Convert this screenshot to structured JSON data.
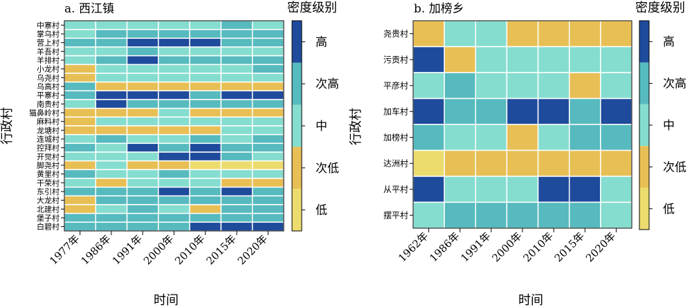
{
  "palette": {
    "低": "#ECDC6E",
    "次低": "#E8BF55",
    "中": "#85DDCF",
    "次高": "#56BABE",
    "高": "#1F4B9C"
  },
  "chart_data": [
    {
      "type": "heatmap",
      "title": "a. 西江镇",
      "xlabel": "时间",
      "ylabel": "行政村",
      "legend_title": "密度级别",
      "legend_levels": [
        "高",
        "次高",
        "中",
        "次低",
        "低"
      ],
      "categories": [
        "1977年",
        "1986年",
        "1991年",
        "2000年",
        "2010年",
        "2015年",
        "2020年"
      ],
      "rows": [
        "中寨村",
        "掌乌村",
        "营上村",
        "羊吾村",
        "羊排村",
        "小龙村",
        "乌尧村",
        "乌高村",
        "平寨村",
        "南贵村",
        "猫鼻岭村",
        "麻料村",
        "龙塘村",
        "连城村",
        "控拜村",
        "开觉村",
        "脚尧村",
        "黄里村",
        "干荣村",
        "东引村",
        "大龙村",
        "北建村",
        "堡子村",
        "白碧村"
      ],
      "values": [
        [
          "中",
          "中",
          "中",
          "中",
          "中",
          "次高",
          "中"
        ],
        [
          "中",
          "次高",
          "次高",
          "次高",
          "次高",
          "次高",
          "次高"
        ],
        [
          "次高",
          "次高",
          "高",
          "高",
          "高",
          "次高",
          "次高"
        ],
        [
          "中",
          "中",
          "次高",
          "中",
          "中",
          "中",
          "中"
        ],
        [
          "中",
          "次高",
          "高",
          "次高",
          "次高",
          "次高",
          "次高"
        ],
        [
          "次低",
          "中",
          "中",
          "中",
          "中",
          "中",
          "次高"
        ],
        [
          "次低",
          "中",
          "中",
          "中",
          "中",
          "中",
          "中"
        ],
        [
          "次高",
          "次低",
          "次低",
          "次低",
          "次低",
          "次低",
          "次低"
        ],
        [
          "次高",
          "高",
          "高",
          "高",
          "次高",
          "高",
          "高"
        ],
        [
          "中",
          "高",
          "次高",
          "次高",
          "次高",
          "次高",
          "次高"
        ],
        [
          "次低",
          "次低",
          "次低",
          "中",
          "次低",
          "次低",
          "次低"
        ],
        [
          "次低",
          "中",
          "中",
          "中",
          "中",
          "中",
          "中"
        ],
        [
          "次低",
          "次低",
          "次低",
          "次低",
          "次低",
          "中",
          "中"
        ],
        [
          "中",
          "次高",
          "中",
          "中",
          "次高",
          "中",
          "次高"
        ],
        [
          "次高",
          "中",
          "高",
          "次高",
          "高",
          "次高",
          "次高"
        ],
        [
          "中",
          "中",
          "中",
          "高",
          "高",
          "次高",
          "中"
        ],
        [
          "次低",
          "中",
          "次低",
          "次低",
          "低",
          "低",
          "低"
        ],
        [
          "次高",
          "中",
          "中",
          "次高",
          "中",
          "中",
          "中"
        ],
        [
          "中",
          "次低",
          "中",
          "中",
          "中",
          "次低",
          "次低"
        ],
        [
          "次高",
          "次高",
          "次高",
          "高",
          "次高",
          "高",
          "次高"
        ],
        [
          "次低",
          "次高",
          "次高",
          "次高",
          "次高",
          "次高",
          "次高"
        ],
        [
          "次低",
          "中",
          "次高",
          "中",
          "次低",
          "次高",
          "次高"
        ],
        [
          "次高",
          "次高",
          "次高",
          "次高",
          "次高",
          "次高",
          "次高"
        ],
        [
          "次高",
          "次高",
          "次高",
          "次高",
          "高",
          "高",
          "高"
        ]
      ]
    },
    {
      "type": "heatmap",
      "title": "b. 加榜乡",
      "xlabel": "时间",
      "ylabel": "行政村",
      "legend_title": "密度级别",
      "legend_levels": [
        "高",
        "次高",
        "中",
        "次低",
        "低"
      ],
      "categories": [
        "1962年",
        "1986年",
        "1991年",
        "2000年",
        "2010年",
        "2015年",
        "2020年"
      ],
      "rows": [
        "尧贵村",
        "污贡村",
        "平彦村",
        "加车村",
        "加榜村",
        "达洲村",
        "从平村",
        "摆平村"
      ],
      "values": [
        [
          "次低",
          "中",
          "中",
          "次低",
          "次低",
          "次低",
          "次低"
        ],
        [
          "高",
          "次低",
          "中",
          "中",
          "中",
          "中",
          "中"
        ],
        [
          "中",
          "次高",
          "中",
          "中",
          "中",
          "次低",
          "中"
        ],
        [
          "高",
          "次高",
          "次高",
          "高",
          "高",
          "次高",
          "高"
        ],
        [
          "次高",
          "中",
          "中",
          "次低",
          "中",
          "次高",
          "次高"
        ],
        [
          "低",
          "次低",
          "次低",
          "次低",
          "次低",
          "次低",
          "次低"
        ],
        [
          "高",
          "中",
          "中",
          "中",
          "高",
          "高",
          "中"
        ],
        [
          "中",
          "次高",
          "次高",
          "次高",
          "次高",
          "次高",
          "中"
        ]
      ]
    }
  ]
}
